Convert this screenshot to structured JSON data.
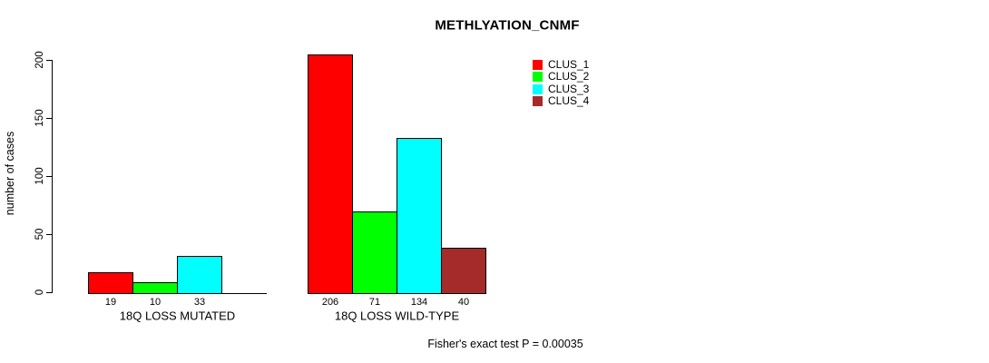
{
  "chart_data": {
    "type": "bar",
    "title": "METHLYATION_CNMF",
    "ylabel": "number of cases",
    "ylim": [
      0,
      200
    ],
    "yticks": [
      0,
      50,
      100,
      150,
      200
    ],
    "grid": false,
    "legend_position": "top-right",
    "series": [
      {
        "name": "CLUS_1",
        "color": "#FF0000"
      },
      {
        "name": "CLUS_2",
        "color": "#00FF00"
      },
      {
        "name": "CLUS_3",
        "color": "#00FFFF"
      },
      {
        "name": "CLUS_4",
        "color": "#A52A2A"
      }
    ],
    "groups": [
      {
        "label": "18Q LOSS MUTATED",
        "values": [
          19,
          10,
          33,
          0
        ],
        "bar_labels": [
          "19",
          "10",
          "33",
          ""
        ]
      },
      {
        "label": "18Q LOSS WILD-TYPE",
        "values": [
          206,
          71,
          134,
          40
        ],
        "bar_labels": [
          "206",
          "71",
          "134",
          "40"
        ]
      }
    ],
    "footnote": "Fisher's exact test P = 0.00035"
  }
}
